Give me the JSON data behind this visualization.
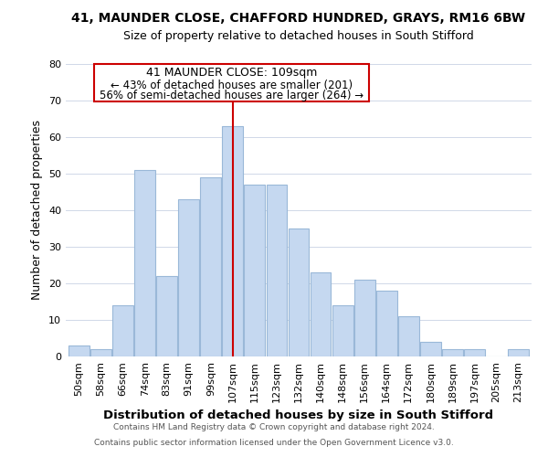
{
  "title": "41, MAUNDER CLOSE, CHAFFORD HUNDRED, GRAYS, RM16 6BW",
  "subtitle": "Size of property relative to detached houses in South Stifford",
  "xlabel": "Distribution of detached houses by size in South Stifford",
  "ylabel": "Number of detached properties",
  "bar_labels": [
    "50sqm",
    "58sqm",
    "66sqm",
    "74sqm",
    "83sqm",
    "91sqm",
    "99sqm",
    "107sqm",
    "115sqm",
    "123sqm",
    "132sqm",
    "140sqm",
    "148sqm",
    "156sqm",
    "164sqm",
    "172sqm",
    "180sqm",
    "189sqm",
    "197sqm",
    "205sqm",
    "213sqm"
  ],
  "bar_values": [
    3,
    2,
    14,
    51,
    22,
    43,
    49,
    63,
    47,
    47,
    35,
    23,
    14,
    21,
    18,
    11,
    4,
    2,
    2,
    0,
    2
  ],
  "bar_color": "#c5d8f0",
  "bar_edge_color": "#9ab8d8",
  "vline_color": "#cc0000",
  "ylim": [
    0,
    80
  ],
  "yticks": [
    0,
    10,
    20,
    30,
    40,
    50,
    60,
    70,
    80
  ],
  "annotation_title": "41 MAUNDER CLOSE: 109sqm",
  "annotation_line1": "← 43% of detached houses are smaller (201)",
  "annotation_line2": "56% of semi-detached houses are larger (264) →",
  "footer1": "Contains HM Land Registry data © Crown copyright and database right 2024.",
  "footer2": "Contains public sector information licensed under the Open Government Licence v3.0.",
  "title_fontsize": 10,
  "subtitle_fontsize": 9,
  "ylabel_fontsize": 9,
  "xlabel_fontsize": 9.5,
  "tick_fontsize": 8,
  "footer_fontsize": 6.5,
  "annot_title_fontsize": 9,
  "annot_text_fontsize": 8.5
}
